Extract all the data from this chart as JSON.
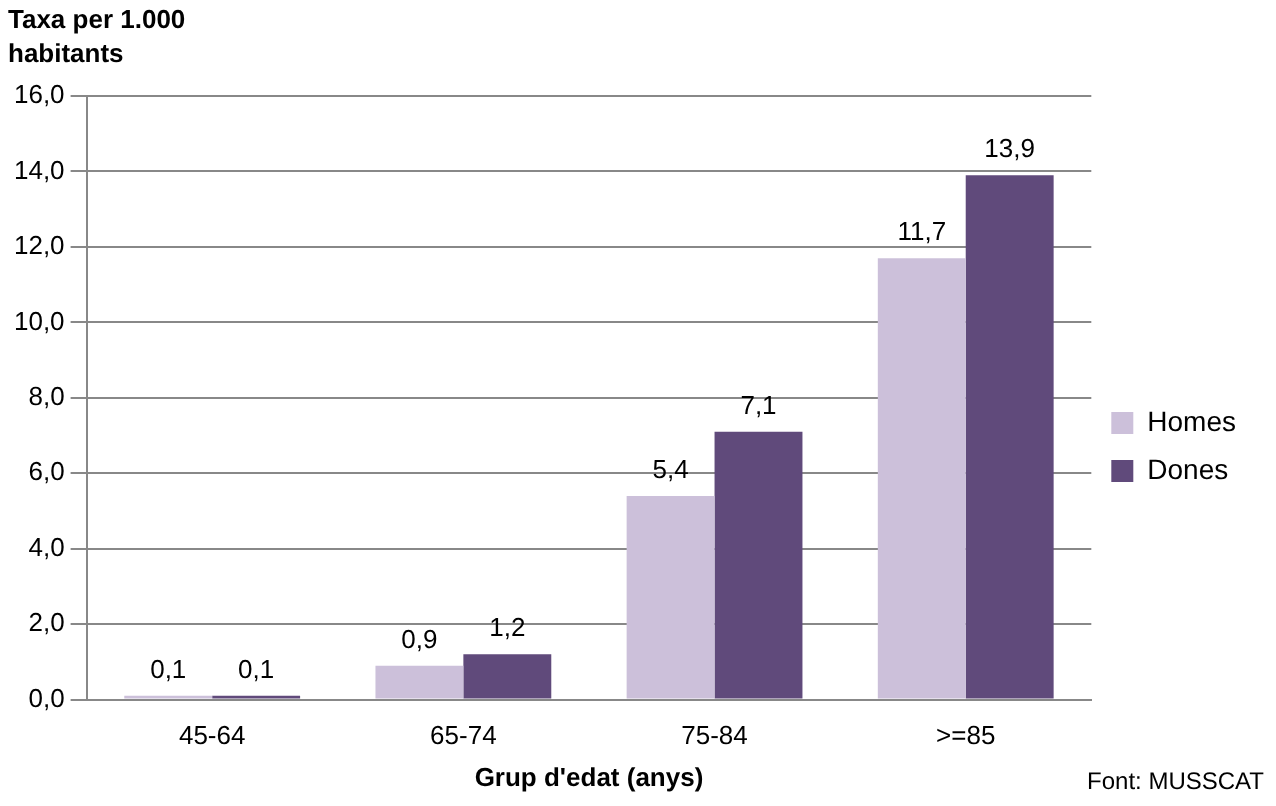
{
  "chart_data": {
    "type": "bar",
    "ylabel": "Taxa per 1.000\nhabitants",
    "xlabel": "Grup d'edat (anys)",
    "categories": [
      "45-64",
      "65-74",
      "75-84",
      ">=85"
    ],
    "series": [
      {
        "name": "Homes",
        "color": "#ccc0da",
        "values": [
          0.1,
          0.9,
          5.4,
          11.7
        ],
        "value_labels": [
          "0,1",
          "0,9",
          "5,4",
          "11,7"
        ]
      },
      {
        "name": "Dones",
        "color": "#604a7b",
        "values": [
          0.1,
          1.2,
          7.1,
          13.9
        ],
        "value_labels": [
          "0,1",
          "1,2",
          "7,1",
          "13,9"
        ]
      }
    ],
    "ylim": [
      0,
      16
    ],
    "yticks": [
      {
        "value": 0,
        "label": "0,0"
      },
      {
        "value": 2,
        "label": "2,0"
      },
      {
        "value": 4,
        "label": "4,0"
      },
      {
        "value": 6,
        "label": "6,0"
      },
      {
        "value": 8,
        "label": "8,0"
      },
      {
        "value": 10,
        "label": "10,0"
      },
      {
        "value": 12,
        "label": "12,0"
      },
      {
        "value": 14,
        "label": "14,0"
      },
      {
        "value": 16,
        "label": "16,0"
      }
    ],
    "grid": "y",
    "legend": "right",
    "annotations": [
      "Font: MUSSCAT"
    ]
  }
}
